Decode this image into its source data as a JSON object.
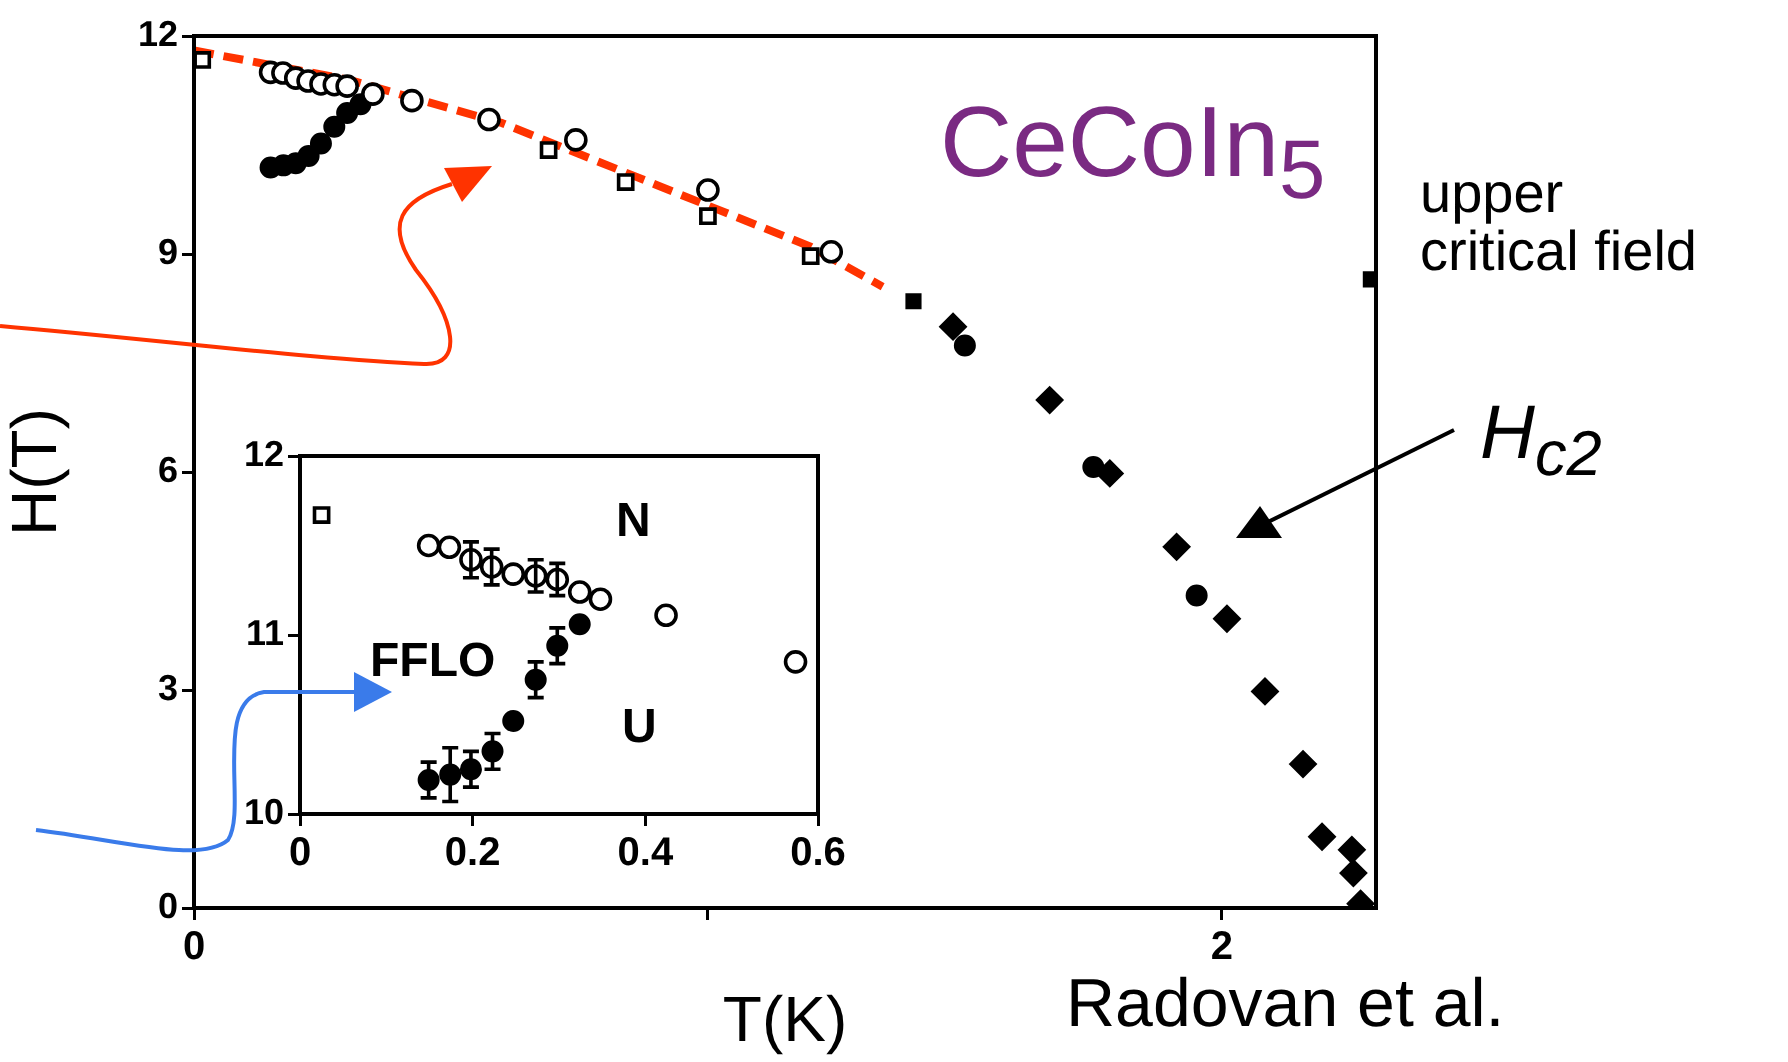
{
  "chart_data": [
    {
      "type": "scatter",
      "title": "CeCoIn$_{5}$",
      "xlabel": "T(K)",
      "ylabel": "H(T)",
      "xlim": [
        0,
        2.3
      ],
      "xticks": [
        0,
        {
          "value": 1,
          "label": null
        },
        2
      ],
      "ylim": [
        0,
        12
      ],
      "yticks": [
        0,
        3,
        6,
        9,
        12
      ],
      "grid": false,
      "legend": false,
      "annotations": [
        "upper critical field",
        "H$_{c2}$",
        "Radovan et al."
      ],
      "series": [
        {
          "color": "#000000",
          "marker": "square",
          "x": [
            0.016,
            0.69,
            0.84,
            1.0,
            1.2
          ],
          "values": [
            11.67,
            10.43,
            9.99,
            9.52,
            8.97
          ]
        },
        {
          "color": "#000000",
          "marker": "circle",
          "x": [
            0.149,
            0.173,
            0.198,
            0.222,
            0.247,
            0.273,
            0.298,
            0.324,
            0.348,
            0.424,
            0.574,
            0.743,
            1.0,
            1.24
          ],
          "values": [
            11.5,
            11.49,
            11.42,
            11.38,
            11.34,
            11.33,
            11.31,
            null,
            11.2,
            11.11,
            10.85,
            10.57,
            9.88,
            9.03
          ]
        },
        {
          "color": "#000000",
          "marker": "circle",
          "x": [
            0.149,
            0.174,
            0.198,
            0.223,
            0.247,
            0.273,
            0.298,
            0.324,
            1.5,
            1.75,
            1.951
          ],
          "values": [
            10.19,
            10.22,
            10.25,
            10.35,
            10.52,
            10.75,
            10.94,
            11.06,
            7.74,
            6.07,
            4.3
          ]
        },
        {
          "color": "#000000",
          "marker": "diamond",
          "x": [
            1.477,
            1.665,
            1.782,
            1.912,
            2.01,
            2.084,
            2.158,
            2.195,
            2.253,
            2.256,
            2.27
          ],
          "values": [
            8.0,
            6.99,
            5.98,
            4.97,
            3.98,
            2.98,
            1.98,
            0.98,
            0.8,
            0.48,
            0.06
          ]
        },
        {
          "color": "#000000",
          "marker": "square",
          "x": [
            1.4,
            2.29
          ],
          "values": [
            8.35,
            8.65
          ]
        },
        {
          "type": "line",
          "color": "#ff3300",
          "marker": "none",
          "line_style": "dashed",
          "x": [
            0,
            0.3,
            0.6,
            0.9,
            1.2,
            1.34
          ],
          "values": [
            11.8,
            11.4,
            10.8,
            9.95,
            9.1,
            8.55
          ]
        }
      ]
    },
    {
      "type": "scatter",
      "xlim": [
        0,
        0.6
      ],
      "xticks": [
        0,
        0.2,
        0.4,
        0.6
      ],
      "ylim": [
        10,
        12
      ],
      "yticks": [
        10,
        11,
        12
      ],
      "grid": false,
      "legend": false,
      "annotations": [
        "N",
        "FFLO",
        "U"
      ],
      "series": [
        {
          "color": "#000000",
          "marker": "square",
          "x": [
            0.025
          ],
          "values": [
            11.67
          ]
        },
        {
          "color": "#000000",
          "marker": "circle",
          "x": [
            0.149,
            0.173,
            0.198,
            0.222,
            0.247,
            0.273,
            0.298,
            0.324,
            0.348,
            0.424,
            0.574
          ],
          "values": [
            11.5,
            11.49,
            11.42,
            11.38,
            11.34,
            11.33,
            11.31,
            11.24,
            11.2,
            11.11,
            10.85
          ],
          "errors": [
            null,
            null,
            0.1,
            0.1,
            null,
            0.09,
            0.09,
            null,
            null,
            null,
            null
          ]
        },
        {
          "color": "#000000",
          "marker": "circle",
          "x": [
            0.149,
            0.174,
            0.198,
            0.223,
            0.247,
            0.273,
            0.298,
            0.324
          ],
          "values": [
            10.19,
            10.22,
            10.25,
            10.35,
            10.52,
            10.75,
            10.94,
            11.06
          ],
          "errors": [
            0.1,
            0.15,
            0.1,
            0.1,
            null,
            0.1,
            0.1,
            null
          ]
        }
      ]
    }
  ]
}
